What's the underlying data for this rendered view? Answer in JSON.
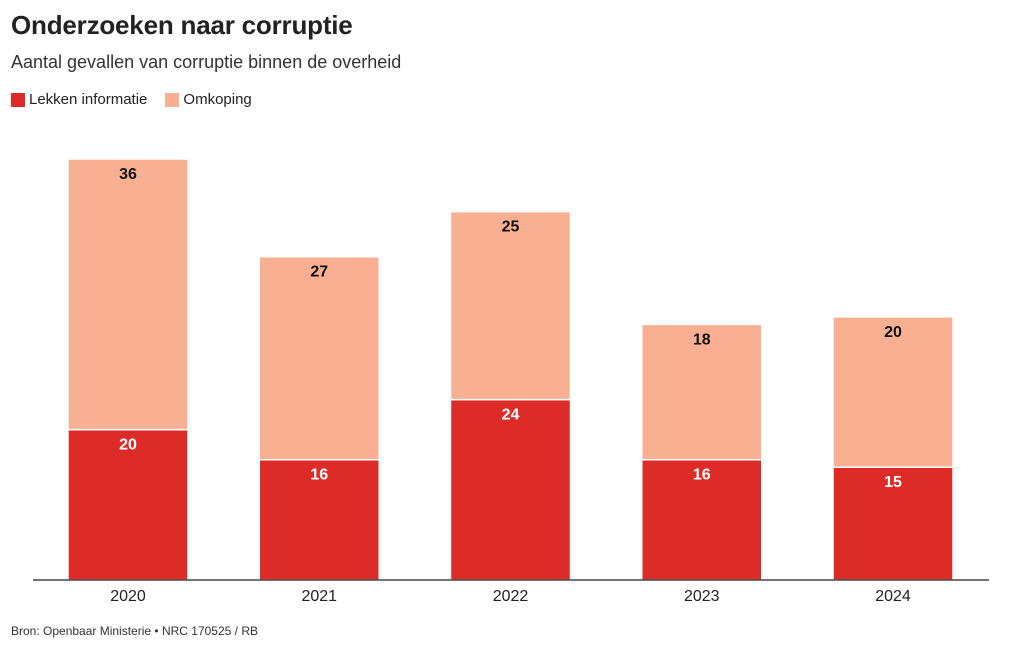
{
  "title": "Onderzoeken naar corruptie",
  "subtitle": "Aantal gevallen van corruptie binnen de overheid",
  "source": "Bron: Openbaar Ministerie • NRC 170525 / RB",
  "colors": {
    "lekken": "#dd2c27",
    "omkoping": "#f9b092",
    "axis": "#222222",
    "label_dark": "#111111",
    "label_light": "#ffffff"
  },
  "chart_data": {
    "type": "bar",
    "stacked": true,
    "title": "Onderzoeken naar corruptie",
    "subtitle": "Aantal gevallen van corruptie binnen de overheid",
    "categories": [
      "2020",
      "2021",
      "2022",
      "2023",
      "2024"
    ],
    "series": [
      {
        "name": "Lekken informatie",
        "values": [
          20,
          16,
          24,
          16,
          15
        ]
      },
      {
        "name": "Omkoping",
        "values": [
          36,
          27,
          25,
          18,
          20
        ]
      }
    ],
    "legend": "top-left",
    "grid": false,
    "ylim": [
      0,
      56
    ]
  }
}
